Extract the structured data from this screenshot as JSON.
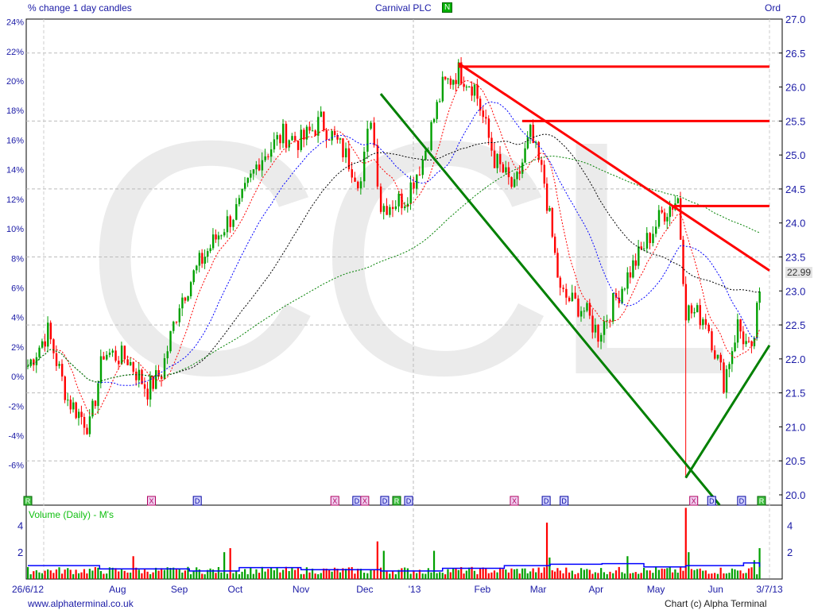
{
  "header": {
    "left_title": "% change 1 day candles",
    "center_title": "Carnival PLC",
    "flag_badge": "N",
    "right_title": "Ord"
  },
  "footer": {
    "left": "www.alphaterminal.co.uk",
    "right": "Chart (c) Alpha Terminal"
  },
  "colors": {
    "up": "#00a000",
    "down": "#ff0000",
    "axis_text": "#1a1aa6",
    "trend_red": "#ff0000",
    "trend_green": "#008000",
    "watermark": "#ebebeb"
  },
  "chart_data": {
    "type": "candlestick",
    "title": "Carnival PLC",
    "watermark": "CCL",
    "price_axis": {
      "ylim": [
        20.0,
        27.0
      ],
      "ticks": [
        "20.0",
        "20.5",
        "21.0",
        "21.5",
        "22.0",
        "22.5",
        "23.0",
        "23.5",
        "24.0",
        "24.5",
        "25.0",
        "25.5",
        "26.0",
        "26.5",
        "27.0"
      ],
      "last_price_label": "22.99",
      "last_price": 22.99
    },
    "percent_axis": {
      "ticks": [
        "-6%",
        "-4%",
        "-2%",
        "0%",
        "2%",
        "4%",
        "6%",
        "8%",
        "10%",
        "12%",
        "14%",
        "16%",
        "18%",
        "20%",
        "22%",
        "24%"
      ],
      "base_price": 21.74
    },
    "x_axis": {
      "start": "2012-06-26",
      "end": "2013-07-03",
      "start_label": "26/6/12",
      "end_label": "3/7/13",
      "month_labels": [
        {
          "label": "Aug",
          "date": "2012-08-10"
        },
        {
          "label": "Sep",
          "date": "2012-09-10"
        },
        {
          "label": "Oct",
          "date": "2012-10-08"
        },
        {
          "label": "Nov",
          "date": "2012-11-10"
        },
        {
          "label": "Dec",
          "date": "2012-12-12"
        },
        {
          "label": "'13",
          "date": "2013-01-06"
        },
        {
          "label": "Feb",
          "date": "2013-02-09"
        },
        {
          "label": "Mar",
          "date": "2013-03-09"
        },
        {
          "label": "Apr",
          "date": "2013-04-07"
        },
        {
          "label": "May",
          "date": "2013-05-07"
        },
        {
          "label": "Jun",
          "date": "2013-06-06"
        }
      ]
    },
    "grid": true,
    "close_path": [
      [
        "2012-06-26",
        21.9
      ],
      [
        "2012-07-06",
        22.4
      ],
      [
        "2012-07-16",
        21.4
      ],
      [
        "2012-07-27",
        21.0
      ],
      [
        "2012-08-03",
        22.1
      ],
      [
        "2012-08-15",
        22.0
      ],
      [
        "2012-08-25",
        21.55
      ],
      [
        "2012-09-01",
        21.8
      ],
      [
        "2012-09-10",
        22.84
      ],
      [
        "2012-09-20",
        23.4
      ],
      [
        "2012-10-01",
        23.9
      ],
      [
        "2012-10-10",
        24.24
      ],
      [
        "2012-10-20",
        24.94
      ],
      [
        "2012-11-01",
        25.3
      ],
      [
        "2012-11-10",
        25.2
      ],
      [
        "2012-11-20",
        25.5
      ],
      [
        "2012-12-01",
        25.06
      ],
      [
        "2012-12-10",
        24.6
      ],
      [
        "2012-12-15",
        25.6
      ],
      [
        "2012-12-20",
        24.24
      ],
      [
        "2013-01-01",
        24.36
      ],
      [
        "2013-01-10",
        24.94
      ],
      [
        "2013-01-20",
        26.0
      ],
      [
        "2013-01-28",
        26.23
      ],
      [
        "2013-02-05",
        26.0
      ],
      [
        "2013-02-15",
        24.94
      ],
      [
        "2013-02-25",
        24.48
      ],
      [
        "2013-03-05",
        25.3
      ],
      [
        "2013-03-12",
        24.6
      ],
      [
        "2013-03-20",
        22.96
      ],
      [
        "2013-04-01",
        22.72
      ],
      [
        "2013-04-08",
        22.37
      ],
      [
        "2013-04-20",
        23.07
      ],
      [
        "2013-05-01",
        23.66
      ],
      [
        "2013-05-10",
        24.13
      ],
      [
        "2013-05-18",
        24.36
      ],
      [
        "2013-05-22",
        22.72
      ],
      [
        "2013-06-01",
        22.6
      ],
      [
        "2013-06-10",
        21.67
      ],
      [
        "2013-06-17",
        22.5
      ],
      [
        "2013-06-24",
        22.03
      ],
      [
        "2013-06-28",
        22.99
      ]
    ],
    "spike_low": {
      "date": "2013-05-22",
      "low": 20.25
    },
    "moving_averages": [
      {
        "period_candles": 10,
        "color": "#ff0000"
      },
      {
        "period_candles": 25,
        "color": "#0000ff"
      },
      {
        "period_candles": 50,
        "color": "#000000"
      },
      {
        "period_candles": 120,
        "color": "#008000"
      }
    ],
    "trendlines": [
      {
        "color": "#ff0000",
        "from": [
          "2013-01-28",
          26.35
        ],
        "to": [
          "2013-07-03",
          23.3
        ]
      },
      {
        "color": "#ff0000",
        "from": [
          "2013-01-28",
          26.3
        ],
        "to": [
          "2013-07-03",
          26.3
        ]
      },
      {
        "color": "#ff0000",
        "from": [
          "2013-03-01",
          25.5
        ],
        "to": [
          "2013-07-03",
          25.5
        ]
      },
      {
        "color": "#ff0000",
        "from": [
          "2013-05-16",
          24.25
        ],
        "to": [
          "2013-07-03",
          24.25
        ]
      },
      {
        "color": "#008000",
        "from": [
          "2012-12-20",
          25.9
        ],
        "to": [
          "2013-06-08",
          19.85
        ]
      },
      {
        "color": "#008000",
        "from": [
          "2013-05-22",
          20.25
        ],
        "to": [
          "2013-07-03",
          22.2
        ]
      }
    ],
    "events": [
      {
        "label": "R",
        "date": "2012-06-26"
      },
      {
        "label": "X",
        "date": "2012-08-27"
      },
      {
        "label": "D",
        "date": "2012-09-19"
      },
      {
        "label": "X",
        "date": "2012-11-27"
      },
      {
        "label": "D",
        "date": "2012-12-08"
      },
      {
        "label": "X",
        "date": "2012-12-12"
      },
      {
        "label": "D",
        "date": "2012-12-22"
      },
      {
        "label": "R",
        "date": "2012-12-28"
      },
      {
        "label": "D",
        "date": "2013-01-03"
      },
      {
        "label": "X",
        "date": "2013-02-25"
      },
      {
        "label": "D",
        "date": "2013-03-13"
      },
      {
        "label": "D",
        "date": "2013-03-22"
      },
      {
        "label": "X",
        "date": "2013-05-26"
      },
      {
        "label": "D",
        "date": "2013-06-04"
      },
      {
        "label": "D",
        "date": "2013-06-19"
      },
      {
        "label": "R",
        "date": "2013-06-29"
      }
    ],
    "volume": {
      "label": "Volume (Daily) - M's",
      "ticks": [
        "2",
        "4"
      ],
      "ylim": [
        0,
        5.5
      ],
      "typical": 0.7,
      "spikes": [
        [
          "2012-08-18",
          1.7
        ],
        [
          "2012-10-03",
          2.0
        ],
        [
          "2012-10-05",
          2.3
        ],
        [
          "2012-12-19",
          2.8
        ],
        [
          "2012-12-21",
          2.1
        ],
        [
          "2013-01-16",
          2.1
        ],
        [
          "2013-03-13",
          4.2
        ],
        [
          "2013-03-15",
          1.6
        ],
        [
          "2013-04-23",
          1.7
        ],
        [
          "2013-05-22",
          5.3
        ],
        [
          "2013-05-24",
          2.0
        ],
        [
          "2013-06-25",
          1.4
        ],
        [
          "2013-06-28",
          2.3
        ]
      ],
      "average": [
        [
          "2012-06-26",
          1.0
        ],
        [
          "2012-08-01",
          0.75
        ],
        [
          "2012-09-15",
          0.6
        ],
        [
          "2012-10-10",
          0.85
        ],
        [
          "2012-11-10",
          0.7
        ],
        [
          "2012-12-20",
          0.6
        ],
        [
          "2013-01-20",
          0.8
        ],
        [
          "2013-02-20",
          1.0
        ],
        [
          "2013-03-15",
          1.1
        ],
        [
          "2013-04-10",
          1.15
        ],
        [
          "2013-05-01",
          0.9
        ],
        [
          "2013-05-22",
          1.0
        ],
        [
          "2013-06-20",
          1.2
        ],
        [
          "2013-06-28",
          0.9
        ]
      ]
    }
  }
}
